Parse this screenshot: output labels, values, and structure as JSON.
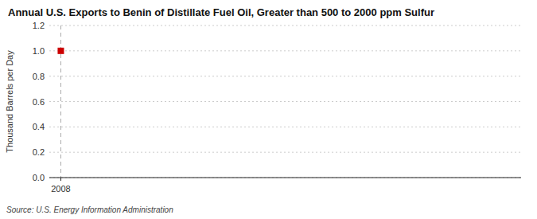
{
  "chart_data": {
    "type": "scatter",
    "title": "Annual U.S. Exports to Benin of Distillate Fuel Oil, Greater than 500 to 2000 ppm Sulfur",
    "ylabel": "Thousand Barrels per Day",
    "source": "Source: U.S. Energy Information Administration",
    "x": [
      2008
    ],
    "values": [
      1.0
    ],
    "color": "#cc0000",
    "marker": "square",
    "xlim": [
      2007.7,
      2020.0
    ],
    "xticks": [
      2008
    ],
    "ylim": [
      0.0,
      1.2
    ],
    "yticks": [
      {
        "value": 0.0,
        "label": "0.0"
      },
      0.2,
      0.4,
      0.6,
      0.8,
      {
        "value": 1.0,
        "label": "1.0"
      },
      1.2
    ],
    "grid": true,
    "vline": 2008
  }
}
